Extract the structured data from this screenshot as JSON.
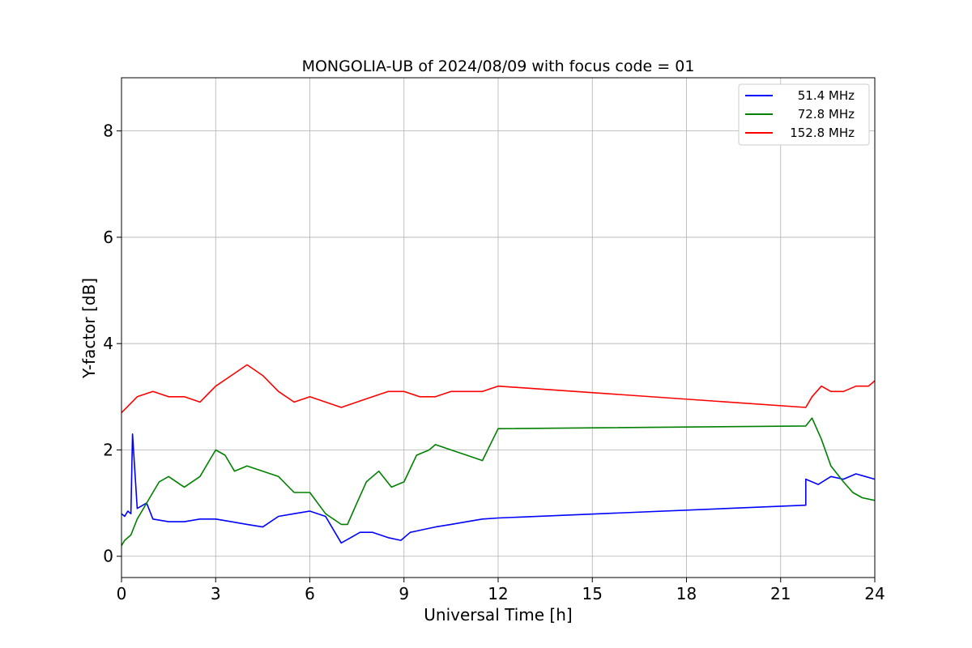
{
  "chart_data": {
    "type": "line",
    "title": "MONGOLIA-UB of 2024/08/09 with focus code = 01",
    "xlabel": "Universal Time [h]",
    "ylabel": "Y-factor [dB]",
    "xlim": [
      0,
      24
    ],
    "ylim": [
      -0.4,
      9.0
    ],
    "x_ticks": [
      0,
      3,
      6,
      9,
      12,
      15,
      18,
      21,
      24
    ],
    "y_ticks": [
      0,
      2,
      4,
      6,
      8
    ],
    "grid": true,
    "legend_position": "top-right",
    "series": [
      {
        "name": "51.4 MHz",
        "color": "#0000ff",
        "x": [
          0,
          0.1,
          0.2,
          0.3,
          0.35,
          0.5,
          0.8,
          1.0,
          1.5,
          2.0,
          2.5,
          3.0,
          3.5,
          4.0,
          4.5,
          5.0,
          5.5,
          6.0,
          6.5,
          6.8,
          7.0,
          7.3,
          7.6,
          8.0,
          8.5,
          8.9,
          9.2,
          9.6,
          10.0,
          10.5,
          11.0,
          11.5,
          12.0,
          21.8,
          21.8,
          22.2,
          22.6,
          23.0,
          23.4,
          23.7,
          24.0
        ],
        "y": [
          0.8,
          0.75,
          0.85,
          0.8,
          2.3,
          0.9,
          1.0,
          0.7,
          0.65,
          0.65,
          0.7,
          0.7,
          0.65,
          0.6,
          0.55,
          0.75,
          0.8,
          0.85,
          0.75,
          0.45,
          0.25,
          0.35,
          0.45,
          0.45,
          0.35,
          0.3,
          0.45,
          0.5,
          0.55,
          0.6,
          0.65,
          0.7,
          0.72,
          0.96,
          1.45,
          1.35,
          1.5,
          1.45,
          1.55,
          1.5,
          1.45
        ]
      },
      {
        "name": "72.8 MHz",
        "color": "#008000",
        "x": [
          0,
          0.1,
          0.3,
          0.5,
          0.8,
          1.2,
          1.5,
          2.0,
          2.5,
          2.8,
          3.0,
          3.3,
          3.6,
          4.0,
          4.5,
          5.0,
          5.5,
          6.0,
          6.5,
          7.0,
          7.2,
          7.5,
          7.8,
          8.2,
          8.6,
          9.0,
          9.4,
          9.8,
          10.0,
          10.5,
          11.0,
          11.5,
          12.0,
          21.8,
          22.0,
          22.3,
          22.6,
          23.0,
          23.3,
          23.6,
          24.0
        ],
        "y": [
          0.2,
          0.3,
          0.4,
          0.7,
          1.0,
          1.4,
          1.5,
          1.3,
          1.5,
          1.8,
          2.0,
          1.9,
          1.6,
          1.7,
          1.6,
          1.5,
          1.2,
          1.2,
          0.8,
          0.6,
          0.6,
          1.0,
          1.4,
          1.6,
          1.3,
          1.4,
          1.9,
          2.0,
          2.1,
          2.0,
          1.9,
          1.8,
          2.4,
          2.45,
          2.6,
          2.2,
          1.7,
          1.4,
          1.2,
          1.1,
          1.05
        ]
      },
      {
        "name": "152.8 MHz",
        "color": "#ff0000",
        "x": [
          0,
          0.5,
          1.0,
          1.5,
          2.0,
          2.5,
          3.0,
          3.5,
          4.0,
          4.5,
          5.0,
          5.5,
          6.0,
          6.5,
          7.0,
          7.5,
          8.0,
          8.5,
          9.0,
          9.5,
          10.0,
          10.5,
          11.0,
          11.5,
          12.0,
          21.8,
          22.0,
          22.3,
          22.6,
          23.0,
          23.4,
          23.8,
          24.0
        ],
        "y": [
          2.7,
          3.0,
          3.1,
          3.0,
          3.0,
          2.9,
          3.2,
          3.4,
          3.6,
          3.4,
          3.1,
          2.9,
          3.0,
          2.9,
          2.8,
          2.9,
          3.0,
          3.1,
          3.1,
          3.0,
          3.0,
          3.1,
          3.1,
          3.1,
          3.2,
          2.8,
          3.0,
          3.2,
          3.1,
          3.1,
          3.2,
          3.2,
          3.3
        ]
      }
    ]
  }
}
